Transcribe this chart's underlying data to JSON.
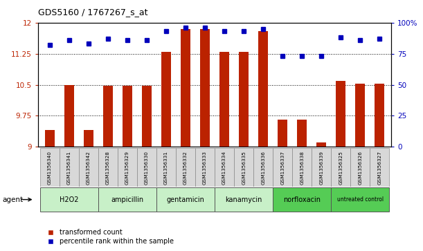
{
  "title": "GDS5160 / 1767267_s_at",
  "samples": [
    "GSM1356340",
    "GSM1356341",
    "GSM1356342",
    "GSM1356328",
    "GSM1356329",
    "GSM1356330",
    "GSM1356331",
    "GSM1356332",
    "GSM1356333",
    "GSM1356334",
    "GSM1356335",
    "GSM1356336",
    "GSM1356337",
    "GSM1356338",
    "GSM1356339",
    "GSM1356325",
    "GSM1356326",
    "GSM1356327"
  ],
  "transformed_count": [
    9.4,
    10.5,
    9.4,
    10.47,
    10.47,
    10.47,
    11.3,
    11.85,
    11.85,
    11.3,
    11.3,
    11.8,
    9.65,
    9.65,
    9.1,
    10.6,
    10.52,
    10.52
  ],
  "percentile_rank": [
    82,
    86,
    83,
    87,
    86,
    86,
    93,
    96,
    96,
    93,
    93,
    95,
    73,
    73,
    73,
    88,
    86,
    87
  ],
  "groups": [
    {
      "label": "H2O2",
      "start": 0,
      "end": 3,
      "color": "#c8f0c8"
    },
    {
      "label": "ampicillin",
      "start": 3,
      "end": 6,
      "color": "#c8f0c8"
    },
    {
      "label": "gentamicin",
      "start": 6,
      "end": 9,
      "color": "#c8f0c8"
    },
    {
      "label": "kanamycin",
      "start": 9,
      "end": 12,
      "color": "#c8f0c8"
    },
    {
      "label": "norfloxacin",
      "start": 12,
      "end": 15,
      "color": "#55cc55"
    },
    {
      "label": "untreated control",
      "start": 15,
      "end": 18,
      "color": "#55cc55"
    }
  ],
  "ylim_left": [
    9.0,
    12.0
  ],
  "ylim_right": [
    0,
    100
  ],
  "yticks_left": [
    9.0,
    9.75,
    10.5,
    11.25,
    12.0
  ],
  "ytick_labels_left": [
    "9",
    "9.75",
    "10.5",
    "11.25",
    "12"
  ],
  "yticks_right": [
    0,
    25,
    50,
    75,
    100
  ],
  "ytick_labels_right": [
    "0",
    "25",
    "50",
    "75",
    "100%"
  ],
  "hlines": [
    9.75,
    10.5,
    11.25
  ],
  "bar_color": "#bb2200",
  "dot_color": "#0000bb",
  "bar_width": 0.5,
  "legend_bar_label": "transformed count",
  "legend_dot_label": "percentile rank within the sample",
  "agent_label": "agent",
  "background_color": "#ffffff"
}
